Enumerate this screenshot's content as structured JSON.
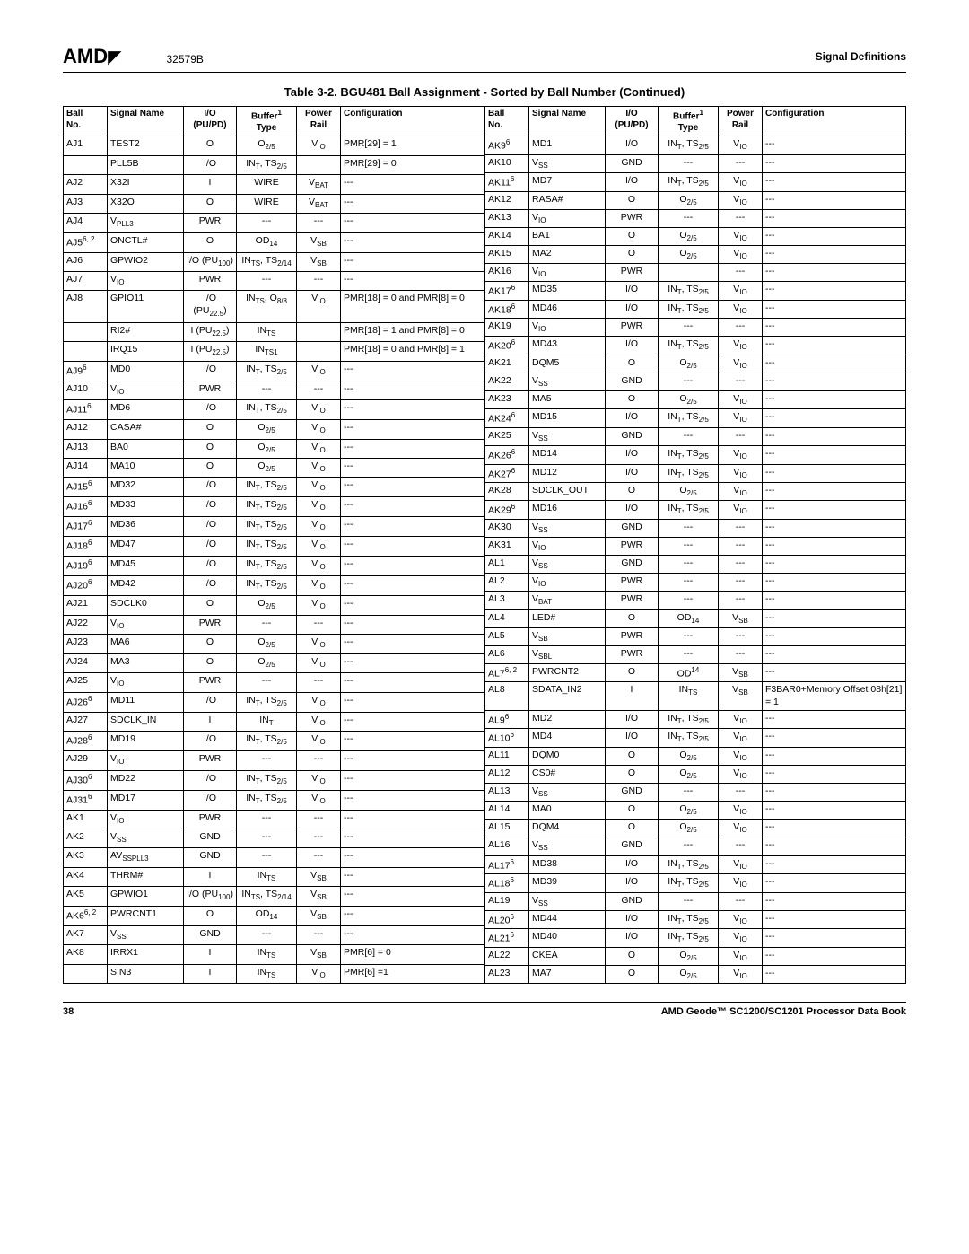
{
  "header": {
    "logo": "AMD",
    "doc_id": "32579B",
    "section_title": "Signal Definitions"
  },
  "table_title": "Table 3-2.   BGU481 Ball Assignment - Sorted by Ball Number (Continued)",
  "columns": [
    "Ball No.",
    "Signal Name",
    "I/O (PU/PD)",
    "Buffer¹ Type",
    "Power Rail",
    "Configuration"
  ],
  "left_rows": [
    {
      "ball": "AJ1",
      "signal": "TEST2",
      "io": "O",
      "buffer": "O<sub>2/5</sub>",
      "power": "V<sub>IO</sub>",
      "config": "PMR[29] = 1"
    },
    {
      "ball": "",
      "signal": "PLL5B",
      "io": "I/O",
      "buffer": "IN<sub>T</sub>, TS<sub>2/5</sub>",
      "power": "",
      "config": "PMR[29] = 0"
    },
    {
      "ball": "AJ2",
      "signal": "X32I",
      "io": "I",
      "buffer": "WIRE",
      "power": "V<sub>BAT</sub>",
      "config": "---"
    },
    {
      "ball": "AJ3",
      "signal": "X32O",
      "io": "O",
      "buffer": "WIRE",
      "power": "V<sub>BAT</sub>",
      "config": "---"
    },
    {
      "ball": "AJ4",
      "signal": "V<sub>PLL3</sub>",
      "io": "PWR",
      "buffer": "---",
      "power": "---",
      "config": "---"
    },
    {
      "ball": "AJ5<sup>6, 2</sup>",
      "signal": "ONCTL#",
      "io": "O",
      "buffer": "OD<sub>14</sub>",
      "power": "V<sub>SB</sub>",
      "config": "---"
    },
    {
      "ball": "AJ6",
      "signal": "GPWIO2",
      "io": "I/O (PU<sub>100</sub>)",
      "buffer": "IN<sub>TS</sub>, TS<sub>2/14</sub>",
      "power": "V<sub>SB</sub>",
      "config": "---"
    },
    {
      "ball": "AJ7",
      "signal": "V<sub>IO</sub>",
      "io": "PWR",
      "buffer": "---",
      "power": "---",
      "config": "---"
    },
    {
      "ball": "AJ8",
      "signal": "GPIO11",
      "io": "I/O (PU<sub>22.5</sub>)",
      "buffer": "IN<sub>TS</sub>, O<sub>8/8</sub>",
      "power": "V<sub>IO</sub>",
      "config": "PMR[18] = 0 and PMR[8] = 0"
    },
    {
      "ball": "",
      "signal": "RI2#",
      "io": "I (PU<sub>22.5</sub>)",
      "buffer": "IN<sub>TS</sub>",
      "power": "",
      "config": "PMR[18] = 1 and PMR[8] = 0"
    },
    {
      "ball": "",
      "signal": "IRQ15",
      "io": "I (PU<sub>22.5</sub>)",
      "buffer": "IN<sub>TS1</sub>",
      "power": "",
      "config": "PMR[18] = 0 and PMR[8] = 1"
    },
    {
      "ball": "AJ9<sup>6</sup>",
      "signal": "MD0",
      "io": "I/O",
      "buffer": "IN<sub>T</sub>, TS<sub>2/5</sub>",
      "power": "V<sub>IO</sub>",
      "config": "---"
    },
    {
      "ball": "AJ10",
      "signal": "V<sub>IO</sub>",
      "io": "PWR",
      "buffer": "---",
      "power": "---",
      "config": "---"
    },
    {
      "ball": "AJ11<sup>6</sup>",
      "signal": "MD6",
      "io": "I/O",
      "buffer": "IN<sub>T</sub>, TS<sub>2/5</sub>",
      "power": "V<sub>IO</sub>",
      "config": "---"
    },
    {
      "ball": "AJ12",
      "signal": "CASA#",
      "io": "O",
      "buffer": "O<sub>2/5</sub>",
      "power": "V<sub>IO</sub>",
      "config": "---"
    },
    {
      "ball": "AJ13",
      "signal": "BA0",
      "io": "O",
      "buffer": "O<sub>2/5</sub>",
      "power": "V<sub>IO</sub>",
      "config": "---"
    },
    {
      "ball": "AJ14",
      "signal": "MA10",
      "io": "O",
      "buffer": "O<sub>2/5</sub>",
      "power": "V<sub>IO</sub>",
      "config": "---"
    },
    {
      "ball": "AJ15<sup>6</sup>",
      "signal": "MD32",
      "io": "I/O",
      "buffer": "IN<sub>T</sub>, TS<sub>2/5</sub>",
      "power": "V<sub>IO</sub>",
      "config": "---"
    },
    {
      "ball": "AJ16<sup>6</sup>",
      "signal": "MD33",
      "io": "I/O",
      "buffer": "IN<sub>T</sub>, TS<sub>2/5</sub>",
      "power": "V<sub>IO</sub>",
      "config": "---"
    },
    {
      "ball": "AJ17<sup>6</sup>",
      "signal": "MD36",
      "io": "I/O",
      "buffer": "IN<sub>T</sub>, TS<sub>2/5</sub>",
      "power": "V<sub>IO</sub>",
      "config": "---"
    },
    {
      "ball": "AJ18<sup>6</sup>",
      "signal": "MD47",
      "io": "I/O",
      "buffer": "IN<sub>T</sub>, TS<sub>2/5</sub>",
      "power": "V<sub>IO</sub>",
      "config": "---"
    },
    {
      "ball": "AJ19<sup>6</sup>",
      "signal": "MD45",
      "io": "I/O",
      "buffer": "IN<sub>T</sub>, TS<sub>2/5</sub>",
      "power": "V<sub>IO</sub>",
      "config": "---"
    },
    {
      "ball": "AJ20<sup>6</sup>",
      "signal": "MD42",
      "io": "I/O",
      "buffer": "IN<sub>T</sub>, TS<sub>2/5</sub>",
      "power": "V<sub>IO</sub>",
      "config": "---"
    },
    {
      "ball": "AJ21",
      "signal": "SDCLK0",
      "io": "O",
      "buffer": "O<sub>2/5</sub>",
      "power": "V<sub>IO</sub>",
      "config": "---"
    },
    {
      "ball": "AJ22",
      "signal": "V<sub>IO</sub>",
      "io": "PWR",
      "buffer": "---",
      "power": "---",
      "config": "---"
    },
    {
      "ball": "AJ23",
      "signal": "MA6",
      "io": "O",
      "buffer": "O<sub>2/5</sub>",
      "power": "V<sub>IO</sub>",
      "config": "---"
    },
    {
      "ball": "AJ24",
      "signal": "MA3",
      "io": "O",
      "buffer": "O<sub>2/5</sub>",
      "power": "V<sub>IO</sub>",
      "config": "---"
    },
    {
      "ball": "AJ25",
      "signal": "V<sub>IO</sub>",
      "io": "PWR",
      "buffer": "---",
      "power": "---",
      "config": "---"
    },
    {
      "ball": "AJ26<sup>6</sup>",
      "signal": "MD11",
      "io": "I/O",
      "buffer": "IN<sub>T</sub>, TS<sub>2/5</sub>",
      "power": "V<sub>IO</sub>",
      "config": "---"
    },
    {
      "ball": "AJ27",
      "signal": "SDCLK_IN",
      "io": "I",
      "buffer": "IN<sub>T</sub>",
      "power": "V<sub>IO</sub>",
      "config": "---"
    },
    {
      "ball": "AJ28<sup>6</sup>",
      "signal": "MD19",
      "io": "I/O",
      "buffer": "IN<sub>T</sub>, TS<sub>2/5</sub>",
      "power": "V<sub>IO</sub>",
      "config": "---"
    },
    {
      "ball": "AJ29",
      "signal": "V<sub>IO</sub>",
      "io": "PWR",
      "buffer": "---",
      "power": "---",
      "config": "---"
    },
    {
      "ball": "AJ30<sup>6</sup>",
      "signal": "MD22",
      "io": "I/O",
      "buffer": "IN<sub>T</sub>, TS<sub>2/5</sub>",
      "power": "V<sub>IO</sub>",
      "config": "---"
    },
    {
      "ball": "AJ31<sup>6</sup>",
      "signal": "MD17",
      "io": "I/O",
      "buffer": "IN<sub>T</sub>, TS<sub>2/5</sub>",
      "power": "V<sub>IO</sub>",
      "config": "---"
    },
    {
      "ball": "AK1",
      "signal": "V<sub>IO</sub>",
      "io": "PWR",
      "buffer": "---",
      "power": "---",
      "config": "---"
    },
    {
      "ball": "AK2",
      "signal": "V<sub>SS</sub>",
      "io": "GND",
      "buffer": "---",
      "power": "---",
      "config": "---"
    },
    {
      "ball": "AK3",
      "signal": "AV<sub>SSPLL3</sub>",
      "io": "GND",
      "buffer": "---",
      "power": "---",
      "config": "---"
    },
    {
      "ball": "AK4",
      "signal": "THRM#",
      "io": "I",
      "buffer": "IN<sub>TS</sub>",
      "power": "V<sub>SB</sub>",
      "config": "---"
    },
    {
      "ball": "AK5",
      "signal": "GPWIO1",
      "io": "I/O (PU<sub>100</sub>)",
      "buffer": "IN<sub>TS</sub>, TS<sub>2/14</sub>",
      "power": "V<sub>SB</sub>",
      "config": "---"
    },
    {
      "ball": "AK6<sup>6, 2</sup>",
      "signal": "PWRCNT1",
      "io": "O",
      "buffer": "OD<sub>14</sub>",
      "power": "V<sub>SB</sub>",
      "config": "---"
    },
    {
      "ball": "AK7",
      "signal": "V<sub>SS</sub>",
      "io": "GND",
      "buffer": "---",
      "power": "---",
      "config": "---"
    },
    {
      "ball": "AK8",
      "signal": "IRRX1",
      "io": "I",
      "buffer": "IN<sub>TS</sub>",
      "power": "V<sub>SB</sub>",
      "config": "PMR[6] = 0"
    },
    {
      "ball": "",
      "signal": "SIN3",
      "io": "I",
      "buffer": "IN<sub>TS</sub>",
      "power": "V<sub>IO</sub>",
      "config": "PMR[6] =1"
    }
  ],
  "right_rows": [
    {
      "ball": "AK9<sup>6</sup>",
      "signal": "MD1",
      "io": "I/O",
      "buffer": "IN<sub>T</sub>, TS<sub>2/5</sub>",
      "power": "V<sub>IO</sub>",
      "config": "---"
    },
    {
      "ball": "AK10",
      "signal": "V<sub>SS</sub>",
      "io": "GND",
      "buffer": "---",
      "power": "---",
      "config": "---"
    },
    {
      "ball": "AK11<sup>6</sup>",
      "signal": "MD7",
      "io": "I/O",
      "buffer": "IN<sub>T</sub>, TS<sub>2/5</sub>",
      "power": "V<sub>IO</sub>",
      "config": "---"
    },
    {
      "ball": "AK12",
      "signal": "RASA#",
      "io": "O",
      "buffer": "O<sub>2/5</sub>",
      "power": "V<sub>IO</sub>",
      "config": "---"
    },
    {
      "ball": "AK13",
      "signal": "V<sub>IO</sub>",
      "io": "PWR",
      "buffer": "---",
      "power": "---",
      "config": "---"
    },
    {
      "ball": "AK14",
      "signal": "BA1",
      "io": "O",
      "buffer": "O<sub>2/5</sub>",
      "power": "V<sub>IO</sub>",
      "config": "---"
    },
    {
      "ball": "AK15",
      "signal": "MA2",
      "io": "O",
      "buffer": "O<sub>2/5</sub>",
      "power": "V<sub>IO</sub>",
      "config": "---"
    },
    {
      "ball": "AK16",
      "signal": "V<sub>IO</sub>",
      "io": "PWR",
      "buffer": "",
      "power": "---",
      "config": "---"
    },
    {
      "ball": "AK17<sup>6</sup>",
      "signal": "MD35",
      "io": "I/O",
      "buffer": "IN<sub>T</sub>, TS<sub>2/5</sub>",
      "power": "V<sub>IO</sub>",
      "config": "---"
    },
    {
      "ball": "AK18<sup>6</sup>",
      "signal": "MD46",
      "io": "I/O",
      "buffer": "IN<sub>T</sub>, TS<sub>2/5</sub>",
      "power": "V<sub>IO</sub>",
      "config": "---"
    },
    {
      "ball": "AK19",
      "signal": "V<sub>IO</sub>",
      "io": "PWR",
      "buffer": "---",
      "power": "---",
      "config": "---"
    },
    {
      "ball": "AK20<sup>6</sup>",
      "signal": "MD43",
      "io": "I/O",
      "buffer": "IN<sub>T</sub>, TS<sub>2/5</sub>",
      "power": "V<sub>IO</sub>",
      "config": "---"
    },
    {
      "ball": "AK21",
      "signal": "DQM5",
      "io": "O",
      "buffer": "O<sub>2/5</sub>",
      "power": "V<sub>IO</sub>",
      "config": "---"
    },
    {
      "ball": "AK22",
      "signal": "V<sub>SS</sub>",
      "io": "GND",
      "buffer": "---",
      "power": "---",
      "config": "---"
    },
    {
      "ball": "AK23",
      "signal": "MA5",
      "io": "O",
      "buffer": "O<sub>2/5</sub>",
      "power": "V<sub>IO</sub>",
      "config": "---"
    },
    {
      "ball": "AK24<sup>6</sup>",
      "signal": "MD15",
      "io": "I/O",
      "buffer": "IN<sub>T</sub>, TS<sub>2/5</sub>",
      "power": "V<sub>IO</sub>",
      "config": "---"
    },
    {
      "ball": "AK25",
      "signal": "V<sub>SS</sub>",
      "io": "GND",
      "buffer": "---",
      "power": "---",
      "config": "---"
    },
    {
      "ball": "AK26<sup>6</sup>",
      "signal": "MD14",
      "io": "I/O",
      "buffer": "IN<sub>T</sub>, TS<sub>2/5</sub>",
      "power": "V<sub>IO</sub>",
      "config": "---"
    },
    {
      "ball": "AK27<sup>6</sup>",
      "signal": "MD12",
      "io": "I/O",
      "buffer": "IN<sub>T</sub>, TS<sub>2/5</sub>",
      "power": "V<sub>IO</sub>",
      "config": "---"
    },
    {
      "ball": "AK28",
      "signal": "SDCLK_OUT",
      "io": "O",
      "buffer": "O<sub>2/5</sub>",
      "power": "V<sub>IO</sub>",
      "config": "---"
    },
    {
      "ball": "AK29<sup>6</sup>",
      "signal": "MD16",
      "io": "I/O",
      "buffer": "IN<sub>T</sub>, TS<sub>2/5</sub>",
      "power": "V<sub>IO</sub>",
      "config": "---"
    },
    {
      "ball": "AK30",
      "signal": "V<sub>SS</sub>",
      "io": "GND",
      "buffer": "---",
      "power": "---",
      "config": "---"
    },
    {
      "ball": "AK31",
      "signal": "V<sub>IO</sub>",
      "io": "PWR",
      "buffer": "---",
      "power": "---",
      "config": "---"
    },
    {
      "ball": "AL1",
      "signal": "V<sub>SS</sub>",
      "io": "GND",
      "buffer": "---",
      "power": "---",
      "config": "---"
    },
    {
      "ball": "AL2",
      "signal": "V<sub>IO</sub>",
      "io": "PWR",
      "buffer": "---",
      "power": "---",
      "config": "---"
    },
    {
      "ball": "AL3",
      "signal": "V<sub>BAT</sub>",
      "io": "PWR",
      "buffer": "---",
      "power": "---",
      "config": "---"
    },
    {
      "ball": "AL4",
      "signal": "LED#",
      "io": "O",
      "buffer": "OD<sub>14</sub>",
      "power": "V<sub>SB</sub>",
      "config": "---"
    },
    {
      "ball": "AL5",
      "signal": "V<sub>SB</sub>",
      "io": "PWR",
      "buffer": "---",
      "power": "---",
      "config": "---"
    },
    {
      "ball": "AL6",
      "signal": "V<sub>SBL</sub>",
      "io": "PWR",
      "buffer": "---",
      "power": "---",
      "config": "---"
    },
    {
      "ball": "AL7<sup>6, 2</sup>",
      "signal": "PWRCNT2",
      "io": "O",
      "buffer": "OD<sup>14</sup>",
      "power": "V<sub>SB</sub>",
      "config": "---"
    },
    {
      "ball": "AL8",
      "signal": "SDATA_IN2",
      "io": "I",
      "buffer": "IN<sub>TS</sub>",
      "power": "V<sub>SB</sub>",
      "config": "F3BAR0+Memory Offset 08h[21] = 1"
    },
    {
      "ball": "AL9<sup>6</sup>",
      "signal": "MD2",
      "io": "I/O",
      "buffer": "IN<sub>T</sub>, TS<sub>2/5</sub>",
      "power": "V<sub>IO</sub>",
      "config": "---"
    },
    {
      "ball": "AL10<sup>6</sup>",
      "signal": "MD4",
      "io": "I/O",
      "buffer": "IN<sub>T</sub>, TS<sub>2/5</sub>",
      "power": "V<sub>IO</sub>",
      "config": "---"
    },
    {
      "ball": "AL11",
      "signal": "DQM0",
      "io": "O",
      "buffer": "O<sub>2/5</sub>",
      "power": "V<sub>IO</sub>",
      "config": "---"
    },
    {
      "ball": "AL12",
      "signal": "CS0#",
      "io": "O",
      "buffer": "O<sub>2/5</sub>",
      "power": "V<sub>IO</sub>",
      "config": "---"
    },
    {
      "ball": "AL13",
      "signal": "V<sub>SS</sub>",
      "io": "GND",
      "buffer": "---",
      "power": "---",
      "config": "---"
    },
    {
      "ball": "AL14",
      "signal": "MA0",
      "io": "O",
      "buffer": "O<sub>2/5</sub>",
      "power": "V<sub>IO</sub>",
      "config": "---"
    },
    {
      "ball": "AL15",
      "signal": "DQM4",
      "io": "O",
      "buffer": "O<sub>2/5</sub>",
      "power": "V<sub>IO</sub>",
      "config": "---"
    },
    {
      "ball": "AL16",
      "signal": "V<sub>SS</sub>",
      "io": "GND",
      "buffer": "---",
      "power": "---",
      "config": "---"
    },
    {
      "ball": "AL17<sup>6</sup>",
      "signal": "MD38",
      "io": "I/O",
      "buffer": "IN<sub>T</sub>, TS<sub>2/5</sub>",
      "power": "V<sub>IO</sub>",
      "config": "---"
    },
    {
      "ball": "AL18<sup>6</sup>",
      "signal": "MD39",
      "io": "I/O",
      "buffer": "IN<sub>T</sub>, TS<sub>2/5</sub>",
      "power": "V<sub>IO</sub>",
      "config": "---"
    },
    {
      "ball": "AL19",
      "signal": "V<sub>SS</sub>",
      "io": "GND",
      "buffer": "---",
      "power": "---",
      "config": "---"
    },
    {
      "ball": "AL20<sup>6</sup>",
      "signal": "MD44",
      "io": "I/O",
      "buffer": "IN<sub>T</sub>, TS<sub>2/5</sub>",
      "power": "V<sub>IO</sub>",
      "config": "---"
    },
    {
      "ball": "AL21<sup>6</sup>",
      "signal": "MD40",
      "io": "I/O",
      "buffer": "IN<sub>T</sub>, TS<sub>2/5</sub>",
      "power": "V<sub>IO</sub>",
      "config": "---"
    },
    {
      "ball": "AL22",
      "signal": "CKEA",
      "io": "O",
      "buffer": "O<sub>2/5</sub>",
      "power": "V<sub>IO</sub>",
      "config": "---"
    },
    {
      "ball": "AL23",
      "signal": "MA7",
      "io": "O",
      "buffer": "O<sub>2/5</sub>",
      "power": "V<sub>IO</sub>",
      "config": "---"
    }
  ],
  "footer": {
    "page": "38",
    "book": "AMD Geode™ SC1200/SC1201 Processor Data Book"
  }
}
